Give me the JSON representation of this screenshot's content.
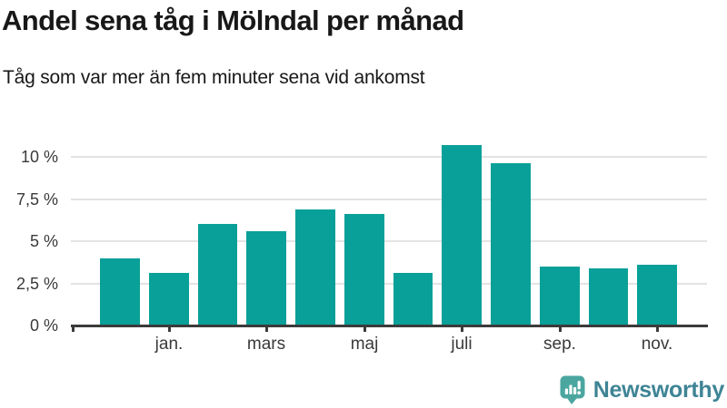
{
  "header": {
    "title": "Andel sena tåg i Mölndal per månad",
    "subtitle": "Tåg som var mer än fem minuter sena vid ankomst"
  },
  "chart_data": {
    "type": "bar",
    "title": "Andel sena tåg i Mölndal per månad",
    "subtitle": "Tåg som var mer än fem minuter sena vid ankomst",
    "unit": "percent",
    "categories": [
      "",
      "jan.",
      "",
      "mars",
      "",
      "maj",
      "",
      "juli",
      "",
      "sep.",
      "",
      "nov."
    ],
    "values": [
      4.0,
      3.1,
      6.0,
      5.6,
      6.9,
      6.6,
      3.1,
      10.7,
      9.6,
      3.5,
      3.4,
      3.6
    ],
    "x_tick_labels": [
      "jan.",
      "mars",
      "maj",
      "juli",
      "sep.",
      "nov."
    ],
    "y_ticks": [
      {
        "value": 0,
        "label": "0 %"
      },
      {
        "value": 2.5,
        "label": "2,5 %"
      },
      {
        "value": 5,
        "label": "5 %"
      },
      {
        "value": 7.5,
        "label": "7,5 %"
      },
      {
        "value": 10,
        "label": "10 %"
      }
    ],
    "ylim": [
      0,
      11.2
    ],
    "xlabel": "",
    "ylabel": "",
    "grid": "horizontal",
    "legend": "none",
    "bar_color": "#09a099"
  },
  "colors": {
    "background": "#ffffff",
    "bar": "#09a099",
    "gridline": "#e3e3e3",
    "axis": "#3b3b3b",
    "axis_label": "#3a3a3a",
    "text": "#181818",
    "logo_icon": "#4ba6a0",
    "logo_text": "#3e8495"
  },
  "footer": {
    "logo_text": "Newsworthy"
  }
}
